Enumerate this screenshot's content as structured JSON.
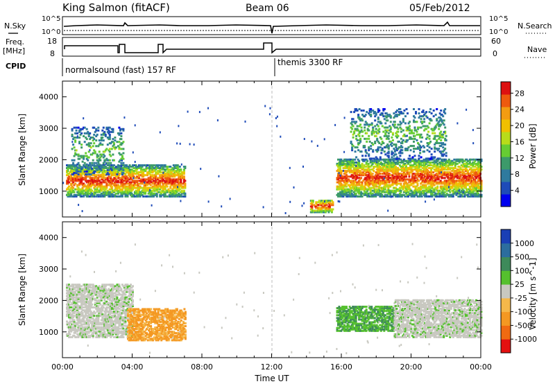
{
  "header": {
    "station": "King Salmon (fitACF)",
    "beam": "Beam 06",
    "date": "05/Feb/2012"
  },
  "top_panel": {
    "nsky_label": "N.Sky",
    "nsearch_label": "N.Search",
    "nave_label": "Nave",
    "freq_label": "Freq.",
    "freq_unit": "[MHz]",
    "cpid_label": "CPID",
    "noise_ticks_left": [
      "10^5",
      "10^0"
    ],
    "noise_ticks_right": [
      "10^5",
      "10^0"
    ],
    "freq_ticks": [
      "18",
      "8"
    ],
    "nave_ticks": [
      "60",
      "0"
    ],
    "cpid_segments": [
      {
        "text": "normalsound (fast) 157 RF",
        "start_hour": 0,
        "end_hour": 12
      },
      {
        "text": "themis 3300 RF",
        "start_hour": 12,
        "end_hour": 24
      }
    ]
  },
  "chart_data": [
    {
      "type": "heatmap",
      "panel": "power",
      "xlabel": "",
      "ylabel": "Slant Range [km]",
      "xlim": [
        0,
        24
      ],
      "ylim": [
        180,
        4500
      ],
      "yticks": [
        1000,
        2000,
        3000,
        4000
      ],
      "colorbar": {
        "label": "Power [dB]",
        "tick_labels": [
          "4",
          "8",
          "12",
          "16",
          "20",
          "24",
          "28"
        ],
        "colors": [
          "#0000ee",
          "#1e4bb8",
          "#2f7a9e",
          "#3c9a6a",
          "#66cc33",
          "#b8dc1a",
          "#f0c000",
          "#f39c12",
          "#ee5a0e",
          "#dd1111"
        ]
      },
      "echo_regions": [
        {
          "t0": 0.2,
          "t1": 7.0,
          "r0": 800,
          "r1": 1800,
          "level": "high"
        },
        {
          "t0": 0.5,
          "t1": 3.5,
          "r0": 1500,
          "r1": 3000,
          "level": "low"
        },
        {
          "t0": 14.2,
          "t1": 15.5,
          "r0": 300,
          "r1": 700,
          "level": "medium"
        },
        {
          "t0": 15.7,
          "t1": 24.0,
          "r0": 800,
          "r1": 2000,
          "level": "high"
        },
        {
          "t0": 16.5,
          "t1": 22.0,
          "r0": 2000,
          "r1": 3600,
          "level": "low"
        }
      ]
    },
    {
      "type": "heatmap",
      "panel": "velocity",
      "xlabel": "Time UT",
      "ylabel": "Slant Range [km]",
      "xlim": [
        0,
        24
      ],
      "ylim": [
        180,
        4500
      ],
      "yticks": [
        1000,
        2000,
        3000,
        4000
      ],
      "x_tick_labels": [
        "00:00",
        "04:00",
        "08:00",
        "12:00",
        "16:00",
        "20:00",
        "00:00"
      ],
      "colorbar": {
        "label": "Velocity [m s^-1]",
        "tick_labels": [
          "1000",
          "500",
          "100",
          "25",
          "-25",
          "-100",
          "-500",
          "-1000"
        ],
        "colors": [
          "#1a3fb5",
          "#2c6d9e",
          "#3e8a5a",
          "#55c02e",
          "#c8c8c0",
          "#f5b84a",
          "#f49822",
          "#f06a12",
          "#e41010"
        ]
      },
      "echo_regions": [
        {
          "t0": 0.2,
          "t1": 4.0,
          "r0": 800,
          "r1": 2500,
          "level": "ground"
        },
        {
          "t0": 3.7,
          "t1": 7.0,
          "r0": 700,
          "r1": 1700,
          "level": "orange"
        },
        {
          "t0": 15.7,
          "t1": 19.0,
          "r0": 1000,
          "r1": 1800,
          "level": "green"
        },
        {
          "t0": 19.0,
          "t1": 24.0,
          "r0": 800,
          "r1": 2000,
          "level": "ground"
        }
      ]
    }
  ]
}
